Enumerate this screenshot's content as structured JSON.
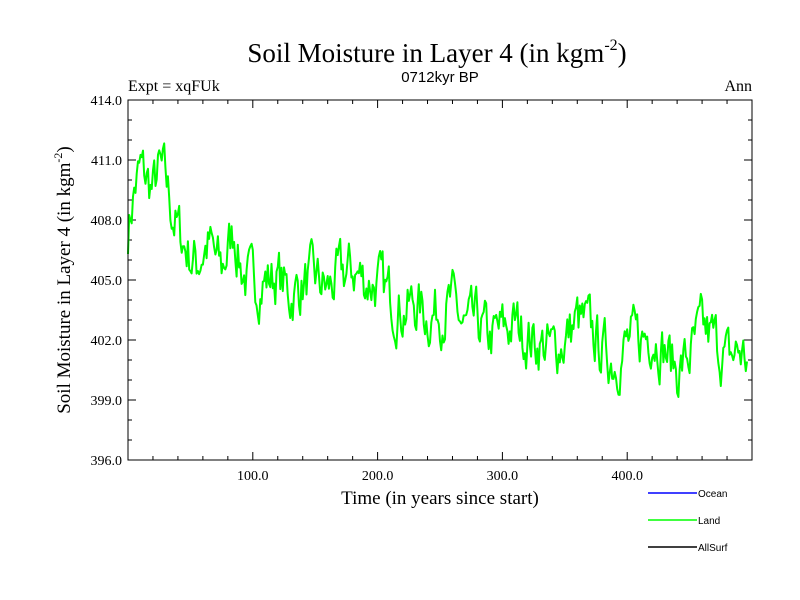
{
  "chart_data": {
    "type": "line",
    "title": "Soil Moisture in Layer 4 (in kgm",
    "title_sup": "-2",
    "title_close": ")",
    "subtitle": "0712kyr BP",
    "left_label": "Expt = xqFUk",
    "right_label": "Ann",
    "xlabel": "Time (in years since start)",
    "ylabel": "Soil Moisture in Layer 4 (in kgm",
    "ylabel_sup": "-2",
    "ylabel_close": ")",
    "xlim": [
      0,
      500
    ],
    "ylim": [
      396,
      414
    ],
    "xticks": [
      100,
      200,
      300,
      400
    ],
    "xtick_labels": [
      "100.0",
      "200.0",
      "300.0",
      "400.0"
    ],
    "yticks": [
      396,
      399,
      402,
      405,
      408,
      411,
      414
    ],
    "ytick_labels": [
      "396.0",
      "399.0",
      "402.0",
      "405.0",
      "408.0",
      "411.0",
      "414.0"
    ],
    "legend": [
      {
        "name": "Ocean",
        "color": "#0000ff"
      },
      {
        "name": "Land",
        "color": "#00ff00"
      },
      {
        "name": "AllSurf",
        "color": "#000000"
      }
    ],
    "series": [
      {
        "name": "Land",
        "color": "#00ff00",
        "anchors": [
          [
            0,
            407.5
          ],
          [
            5,
            409.5
          ],
          [
            10,
            410.5
          ],
          [
            15,
            410.0
          ],
          [
            20,
            409.5
          ],
          [
            25,
            410.5
          ],
          [
            30,
            410.0
          ],
          [
            35,
            408.5
          ],
          [
            40,
            407.5
          ],
          [
            45,
            406.8
          ],
          [
            50,
            406.2
          ],
          [
            55,
            405.8
          ],
          [
            60,
            406.5
          ],
          [
            65,
            406.8
          ],
          [
            70,
            406.0
          ],
          [
            75,
            405.5
          ],
          [
            80,
            406.5
          ],
          [
            85,
            407.5
          ],
          [
            90,
            405.8
          ],
          [
            95,
            405.0
          ],
          [
            100,
            404.8
          ],
          [
            110,
            405.0
          ],
          [
            120,
            405.2
          ],
          [
            130,
            404.2
          ],
          [
            140,
            404.8
          ],
          [
            150,
            405.0
          ],
          [
            160,
            404.5
          ],
          [
            170,
            405.2
          ],
          [
            180,
            405.5
          ],
          [
            190,
            405.0
          ],
          [
            200,
            404.8
          ],
          [
            210,
            404.2
          ],
          [
            220,
            403.5
          ],
          [
            230,
            403.8
          ],
          [
            240,
            403.2
          ],
          [
            250,
            403.5
          ],
          [
            260,
            403.8
          ],
          [
            270,
            402.5
          ],
          [
            280,
            402.8
          ],
          [
            290,
            402.0
          ],
          [
            300,
            402.5
          ],
          [
            310,
            402.8
          ],
          [
            320,
            402.2
          ],
          [
            330,
            401.8
          ],
          [
            340,
            401.5
          ],
          [
            350,
            402.0
          ],
          [
            360,
            403.0
          ],
          [
            370,
            402.5
          ],
          [
            380,
            401.5
          ],
          [
            390,
            401.0
          ],
          [
            400,
            401.8
          ],
          [
            410,
            402.0
          ],
          [
            420,
            402.5
          ],
          [
            430,
            401.5
          ],
          [
            440,
            400.5
          ],
          [
            450,
            401.2
          ],
          [
            460,
            402.5
          ],
          [
            470,
            402.0
          ],
          [
            480,
            401.0
          ],
          [
            490,
            401.5
          ],
          [
            496,
            401.0
          ]
        ],
        "noise_seed": 7,
        "noise_amplitude": 1.2
      }
    ]
  }
}
